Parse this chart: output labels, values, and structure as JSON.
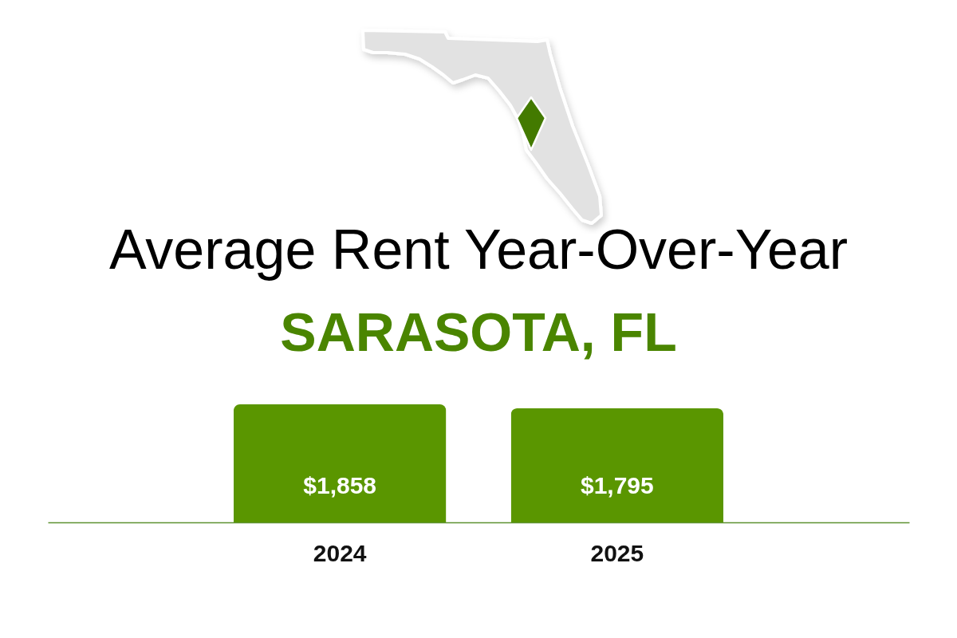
{
  "chart_data": {
    "type": "bar",
    "title": "Average Rent Year-Over-Year",
    "subtitle": "SARASOTA, FL",
    "categories": [
      "2024",
      "2025"
    ],
    "values": [
      1858,
      1795
    ],
    "value_labels": [
      "$1,858",
      "$1,795"
    ],
    "color": "#5a9600",
    "tick_labels": "x"
  }
}
